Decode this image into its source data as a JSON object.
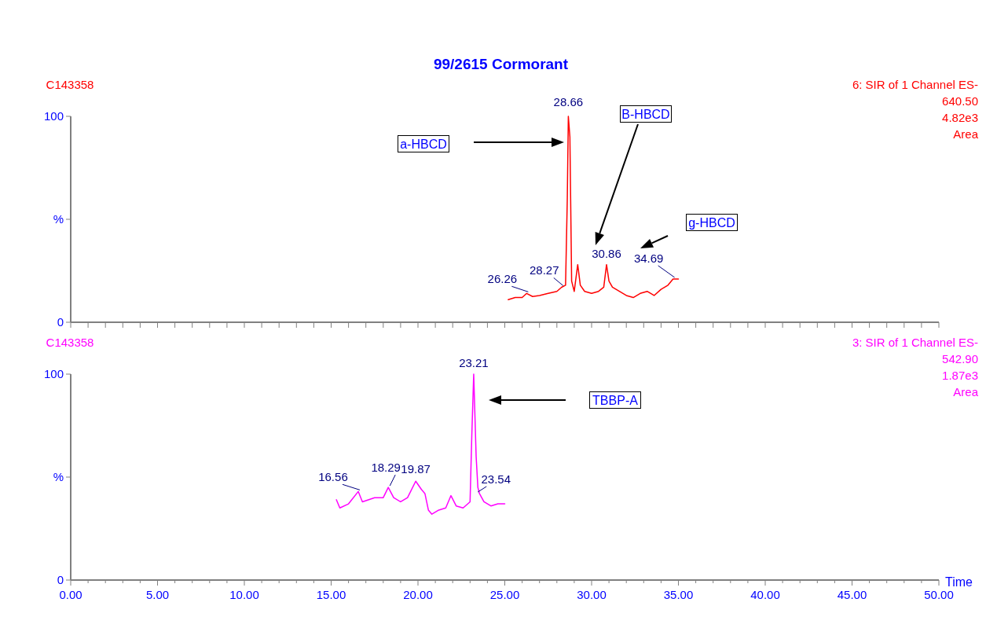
{
  "chart_data": [
    {
      "type": "line",
      "title": "99/2615 Cormorant",
      "tick_labels": "y",
      "xlim": [
        0,
        50
      ],
      "xticks": [
        {
          "value": 0,
          "label": null
        },
        {
          "value": 1,
          "label": null
        },
        {
          "value": 2,
          "label": null
        },
        {
          "value": 3,
          "label": null
        },
        {
          "value": 4,
          "label": null
        },
        {
          "value": 5,
          "label": null
        },
        {
          "value": 6,
          "label": null
        },
        {
          "value": 7,
          "label": null
        },
        {
          "value": 8,
          "label": null
        },
        {
          "value": 9,
          "label": null
        },
        {
          "value": 10,
          "label": null
        },
        {
          "value": 11,
          "label": null
        },
        {
          "value": 12,
          "label": null
        },
        {
          "value": 13,
          "label": null
        },
        {
          "value": 14,
          "label": null
        },
        {
          "value": 15,
          "label": null
        },
        {
          "value": 16,
          "label": null
        },
        {
          "value": 17,
          "label": null
        },
        {
          "value": 18,
          "label": null
        },
        {
          "value": 19,
          "label": null
        },
        {
          "value": 20,
          "label": null
        },
        {
          "value": 21,
          "label": null
        },
        {
          "value": 22,
          "label": null
        },
        {
          "value": 23,
          "label": null
        },
        {
          "value": 24,
          "label": null
        },
        {
          "value": 25,
          "label": null
        },
        {
          "value": 26,
          "label": null
        },
        {
          "value": 27,
          "label": null
        },
        {
          "value": 28,
          "label": null
        },
        {
          "value": 29,
          "label": null
        },
        {
          "value": 30,
          "label": null
        },
        {
          "value": 31,
          "label": null
        },
        {
          "value": 32,
          "label": null
        },
        {
          "value": 33,
          "label": null
        },
        {
          "value": 34,
          "label": null
        },
        {
          "value": 35,
          "label": null
        },
        {
          "value": 36,
          "label": null
        },
        {
          "value": 37,
          "label": null
        },
        {
          "value": 38,
          "label": null
        },
        {
          "value": 39,
          "label": null
        },
        {
          "value": 40,
          "label": null
        },
        {
          "value": 41,
          "label": null
        },
        {
          "value": 42,
          "label": null
        },
        {
          "value": 43,
          "label": null
        },
        {
          "value": 44,
          "label": null
        },
        {
          "value": 45,
          "label": null
        },
        {
          "value": 46,
          "label": null
        },
        {
          "value": 47,
          "label": null
        },
        {
          "value": 48,
          "label": null
        },
        {
          "value": 49,
          "label": null
        },
        {
          "value": 50,
          "label": null
        }
      ],
      "ylim": [
        0,
        100
      ],
      "yticks": [
        {
          "value": 0,
          "label": "0"
        },
        {
          "value": 50,
          "label": "%"
        },
        {
          "value": 100,
          "label": "100"
        }
      ],
      "series": [
        {
          "color": "#ff0000",
          "x": [
            25.2,
            25.6,
            26.0,
            26.26,
            26.6,
            27.0,
            27.5,
            28.0,
            28.27,
            28.5,
            28.6,
            28.66,
            28.75,
            28.85,
            29.0,
            29.2,
            29.35,
            29.6,
            30.0,
            30.4,
            30.7,
            30.86,
            31.0,
            31.2,
            31.6,
            32.0,
            32.4,
            32.8,
            33.2,
            33.6,
            34.0,
            34.4,
            34.69,
            35.0
          ],
          "values": [
            11,
            12,
            12,
            14,
            12.5,
            13,
            14,
            15,
            17,
            18,
            60,
            100,
            90,
            20,
            15,
            28,
            18,
            15,
            14,
            15,
            17,
            28,
            20,
            17,
            15,
            13,
            12,
            14,
            15,
            13,
            16,
            18,
            21,
            21
          ]
        }
      ],
      "annotations": [
        "C143358",
        "6: SIR of 1 Channel ES-",
        "640.50",
        "4.82e3",
        "Area",
        {
          "text": "26.26",
          "x": 26.26,
          "y": 14
        },
        {
          "text": "28.27",
          "x": 28.27,
          "y": 17
        },
        {
          "text": "28.66",
          "x": 28.66,
          "y": 100
        },
        {
          "text": "30.86",
          "x": 30.86,
          "y": 28
        },
        {
          "text": "34.69",
          "x": 34.69,
          "y": 21
        },
        "a-HBCD",
        "B-HBCD",
        "g-HBCD"
      ]
    },
    {
      "type": "line",
      "xlabel": "Time",
      "xlim": [
        0,
        50
      ],
      "xticks": [
        {
          "value": 0,
          "label": "0.00"
        },
        {
          "value": 1,
          "label": null
        },
        {
          "value": 2,
          "label": null
        },
        {
          "value": 3,
          "label": null
        },
        {
          "value": 4,
          "label": null
        },
        {
          "value": 5,
          "label": "5.00"
        },
        {
          "value": 6,
          "label": null
        },
        {
          "value": 7,
          "label": null
        },
        {
          "value": 8,
          "label": null
        },
        {
          "value": 9,
          "label": null
        },
        {
          "value": 10,
          "label": "10.00"
        },
        {
          "value": 11,
          "label": null
        },
        {
          "value": 12,
          "label": null
        },
        {
          "value": 13,
          "label": null
        },
        {
          "value": 14,
          "label": null
        },
        {
          "value": 15,
          "label": "15.00"
        },
        {
          "value": 16,
          "label": null
        },
        {
          "value": 17,
          "label": null
        },
        {
          "value": 18,
          "label": null
        },
        {
          "value": 19,
          "label": null
        },
        {
          "value": 20,
          "label": "20.00"
        },
        {
          "value": 21,
          "label": null
        },
        {
          "value": 22,
          "label": null
        },
        {
          "value": 23,
          "label": null
        },
        {
          "value": 24,
          "label": null
        },
        {
          "value": 25,
          "label": "25.00"
        },
        {
          "value": 26,
          "label": null
        },
        {
          "value": 27,
          "label": null
        },
        {
          "value": 28,
          "label": null
        },
        {
          "value": 29,
          "label": null
        },
        {
          "value": 30,
          "label": "30.00"
        },
        {
          "value": 31,
          "label": null
        },
        {
          "value": 32,
          "label": null
        },
        {
          "value": 33,
          "label": null
        },
        {
          "value": 34,
          "label": null
        },
        {
          "value": 35,
          "label": "35.00"
        },
        {
          "value": 36,
          "label": null
        },
        {
          "value": 37,
          "label": null
        },
        {
          "value": 38,
          "label": null
        },
        {
          "value": 39,
          "label": null
        },
        {
          "value": 40,
          "label": "40.00"
        },
        {
          "value": 41,
          "label": null
        },
        {
          "value": 42,
          "label": null
        },
        {
          "value": 43,
          "label": null
        },
        {
          "value": 44,
          "label": null
        },
        {
          "value": 45,
          "label": "45.00"
        },
        {
          "value": 46,
          "label": null
        },
        {
          "value": 47,
          "label": null
        },
        {
          "value": 48,
          "label": null
        },
        {
          "value": 49,
          "label": null
        },
        {
          "value": 50,
          "label": "50.00"
        }
      ],
      "ylim": [
        0,
        100
      ],
      "yticks": [
        {
          "value": 0,
          "label": "0"
        },
        {
          "value": 50,
          "label": "%"
        },
        {
          "value": 100,
          "label": "100"
        }
      ],
      "series": [
        {
          "color": "#ff00ff",
          "x": [
            15.3,
            15.5,
            16.0,
            16.56,
            16.8,
            17.5,
            18.0,
            18.29,
            18.6,
            19.0,
            19.4,
            19.87,
            20.2,
            20.4,
            20.6,
            20.8,
            21.2,
            21.6,
            21.9,
            22.2,
            22.6,
            23.0,
            23.1,
            23.21,
            23.35,
            23.45,
            23.54,
            23.8,
            24.2,
            24.6,
            25.0
          ],
          "values": [
            39,
            35,
            37,
            43,
            38,
            40,
            40,
            45,
            40,
            38,
            40,
            48,
            44,
            42,
            34,
            32,
            34,
            35,
            41,
            36,
            35,
            38,
            70,
            100,
            60,
            45,
            42,
            38,
            36,
            37,
            37
          ]
        }
      ],
      "annotations": [
        "C143358",
        "3: SIR of 1 Channel ES-",
        "542.90",
        "1.87e3",
        "Area",
        {
          "text": "16.56",
          "x": 16.56,
          "y": 43
        },
        {
          "text": "18.29",
          "x": 18.29,
          "y": 45
        },
        {
          "text": "19.87",
          "x": 19.87,
          "y": 48
        },
        {
          "text": "23.21",
          "x": 23.21,
          "y": 100
        },
        {
          "text": "23.54",
          "x": 23.54,
          "y": 42
        },
        "TBBP-A"
      ]
    }
  ]
}
